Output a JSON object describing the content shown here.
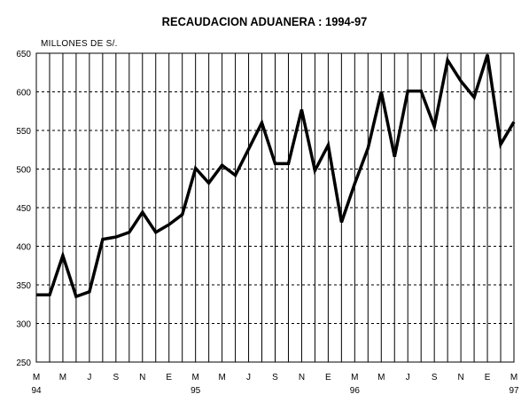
{
  "chart_data": {
    "type": "line",
    "title": "RECAUDACION ADUANERA : 1994-97",
    "ylabel": "MILLONES DE S/.",
    "xlabel": "",
    "ylim": [
      250,
      650
    ],
    "yticks": [
      250,
      300,
      350,
      400,
      450,
      500,
      550,
      600,
      650
    ],
    "grid": true,
    "legend": "none",
    "line_color": "#000000",
    "x_tick_labels": [
      "M",
      "M",
      "J",
      "S",
      "N",
      "E",
      "M",
      "M",
      "J",
      "S",
      "N",
      "E",
      "M",
      "M",
      "J",
      "S",
      "N",
      "E",
      "M"
    ],
    "x_year_labels": [
      {
        "at": 0,
        "label": "94"
      },
      {
        "at": 6,
        "label": "95"
      },
      {
        "at": 12,
        "label": "96"
      },
      {
        "at": 18,
        "label": "97"
      }
    ],
    "series": [
      {
        "values": [
          337,
          337,
          388,
          335,
          341,
          409,
          412,
          418,
          444,
          418,
          428,
          441,
          501,
          482,
          505,
          492,
          526,
          560,
          507,
          507,
          577,
          498,
          531,
          431,
          481,
          527,
          600,
          516,
          601,
          601,
          555,
          641,
          614,
          593,
          648,
          532,
          561
        ]
      }
    ]
  }
}
